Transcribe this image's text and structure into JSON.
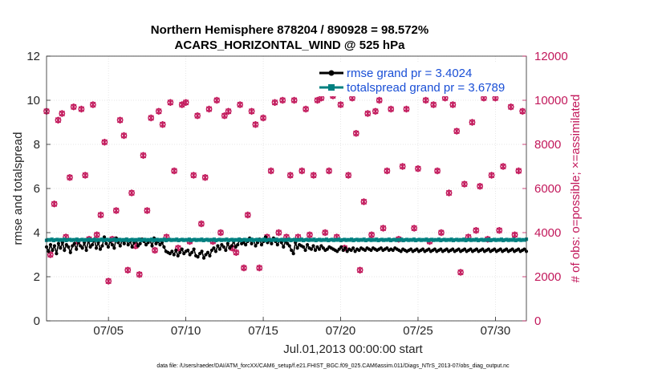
{
  "chart_data": {
    "type": "line",
    "title": "Northern Hemisphere 878204 / 890928 = 98.572%",
    "subtitle": "ACARS_HORIZONTAL_WIND @ 525 hPa",
    "xlabel": "Jul.01,2013 00:00:00 start",
    "ylabel": "rmse and totalspread",
    "ylabel_right": "# of obs: o=possible; ×=assimilated",
    "footnote": "data file: /Users/raeder/DAI/ATM_forcXX/CAM6_setup/f.e21.FHIST_BGC.f09_025.CAM6assim.011/Diags_NTrS_2013-07/obs_diag_output.nc",
    "xlim": [
      1,
      32
    ],
    "ylim": [
      0,
      12
    ],
    "ylim_right": [
      0,
      12000
    ],
    "xticks": [
      5,
      10,
      15,
      20,
      25,
      30
    ],
    "xtick_labels": [
      "07/05",
      "07/10",
      "07/15",
      "07/20",
      "07/25",
      "07/30"
    ],
    "yticks": [
      0,
      2,
      4,
      6,
      8,
      10,
      12
    ],
    "ytick_labels": [
      "0",
      "2",
      "4",
      "6",
      "8",
      "10",
      "12"
    ],
    "yticks_right": [
      0,
      2000,
      4000,
      6000,
      8000,
      10000,
      12000
    ],
    "ytick_labels_right": [
      "0",
      "2000",
      "4000",
      "6000",
      "8000",
      "10000",
      "12000"
    ],
    "legend_position": "top-right",
    "series": [
      {
        "name": "rmse grand pr = 3.4024",
        "color": "#000000",
        "values": [
          3.35,
          3.15,
          3.45,
          3.2,
          3.4,
          3.05,
          3.5,
          3.3,
          3.55,
          3.2,
          3.45,
          3.35,
          3.1,
          3.4,
          3.5,
          3.25,
          3.6,
          3.4,
          3.3,
          3.55,
          3.2,
          3.65,
          3.35,
          3.45,
          3.7,
          3.3,
          3.55,
          3.25,
          3.4,
          3.8,
          3.5,
          3.35,
          3.6,
          3.45,
          3.3,
          3.75,
          3.55,
          3.4,
          3.65,
          3.5,
          3.7,
          3.45,
          3.6,
          3.35,
          3.55,
          3.65,
          3.4,
          3.5,
          3.7,
          3.6,
          3.45,
          3.55,
          3.65,
          3.4,
          3.75,
          3.5,
          3.6,
          3.45,
          3.55,
          3.35,
          3.15,
          3.1,
          3.05,
          3.15,
          3.0,
          3.2,
          2.95,
          3.1,
          3.25,
          3.05,
          3.15,
          3.2,
          3.0,
          3.1,
          3.25,
          2.95,
          2.9,
          3.05,
          3.15,
          2.85,
          3.0,
          3.1,
          2.95,
          3.2,
          3.3,
          3.15,
          3.4,
          3.25,
          3.45,
          3.35,
          3.2,
          3.5,
          3.3,
          3.4,
          3.6,
          3.35,
          3.45,
          3.7,
          3.5,
          3.55,
          3.45,
          3.6,
          3.75,
          3.5,
          3.65,
          3.4,
          3.55,
          3.7,
          3.45,
          3.6,
          3.8,
          3.55,
          3.65,
          3.5,
          3.75,
          3.6,
          3.45,
          3.65,
          3.55,
          3.35,
          3.6,
          3.5,
          3.4,
          3.2,
          3.05,
          3.55,
          3.3,
          3.45,
          3.4,
          3.35,
          3.2,
          3.45,
          3.3,
          3.25,
          3.4,
          3.2,
          3.35,
          3.25,
          3.4,
          3.3,
          3.2,
          3.25,
          3.35,
          3.3,
          3.25,
          3.2,
          3.15,
          3.25,
          3.35,
          3.2,
          3.3,
          3.15,
          3.25,
          3.2,
          3.3,
          3.15,
          3.25,
          3.2,
          3.3,
          3.25,
          3.2,
          3.3,
          3.25,
          3.2,
          3.3,
          3.25,
          3.2,
          3.25,
          3.3,
          3.2,
          3.25,
          3.3,
          3.2,
          3.25,
          3.2,
          3.3,
          3.25,
          3.2,
          3.15,
          3.25,
          3.2,
          3.15,
          3.2,
          3.25,
          3.15,
          3.2,
          3.25,
          3.15,
          3.2,
          3.25,
          3.15,
          3.2,
          3.25,
          3.15,
          3.2,
          3.25,
          3.15,
          3.2,
          3.25,
          3.15,
          3.2,
          3.25,
          3.15,
          3.2,
          3.25,
          3.15,
          3.2,
          3.25,
          3.15,
          3.2,
          3.25,
          3.15,
          3.2,
          3.25,
          3.15,
          3.2,
          3.25,
          3.15,
          3.2,
          3.25,
          3.15,
          3.2,
          3.25,
          3.15,
          3.2,
          3.25,
          3.15,
          3.2,
          3.25,
          3.15,
          3.2,
          3.25,
          3.15,
          3.2,
          3.25,
          3.15,
          3.2,
          3.25,
          3.15,
          3.2,
          3.25,
          3.15
        ]
      },
      {
        "name": "totalspread grand pr = 3.6789",
        "color": "#008080",
        "values": [
          3.65,
          3.68,
          3.66,
          3.7,
          3.64,
          3.67,
          3.69,
          3.65,
          3.68,
          3.66,
          3.7,
          3.64,
          3.67,
          3.69,
          3.65,
          3.68,
          3.66,
          3.7,
          3.64,
          3.67,
          3.69,
          3.65,
          3.68,
          3.66,
          3.7,
          3.64,
          3.67,
          3.69,
          3.65,
          3.68,
          3.66,
          3.7,
          3.64,
          3.67,
          3.69,
          3.65,
          3.68,
          3.66,
          3.7,
          3.64,
          3.67,
          3.69,
          3.65,
          3.68,
          3.66,
          3.7,
          3.64,
          3.67,
          3.69,
          3.65,
          3.68,
          3.66,
          3.7,
          3.64,
          3.67,
          3.69,
          3.65,
          3.68,
          3.66,
          3.7,
          3.64,
          3.67,
          3.69,
          3.65,
          3.68,
          3.66,
          3.7,
          3.64,
          3.67,
          3.69,
          3.65,
          3.68,
          3.66,
          3.7,
          3.64,
          3.67,
          3.69,
          3.65,
          3.68,
          3.66,
          3.7,
          3.64,
          3.67,
          3.69,
          3.65,
          3.68,
          3.66,
          3.7,
          3.64,
          3.67,
          3.69,
          3.65,
          3.68,
          3.66,
          3.7,
          3.64,
          3.67,
          3.69,
          3.65,
          3.68,
          3.66,
          3.7,
          3.64,
          3.67,
          3.69,
          3.65,
          3.68,
          3.66,
          3.7,
          3.64,
          3.67,
          3.69,
          3.65,
          3.68,
          3.66,
          3.7,
          3.64,
          3.67,
          3.69,
          3.65,
          3.68,
          3.66,
          3.7,
          3.64,
          3.67,
          3.69,
          3.65,
          3.68,
          3.66,
          3.7,
          3.64,
          3.67,
          3.69,
          3.65,
          3.68,
          3.66,
          3.7,
          3.64,
          3.67,
          3.69,
          3.65,
          3.68,
          3.66,
          3.7,
          3.64,
          3.67,
          3.69,
          3.65,
          3.68,
          3.66,
          3.7,
          3.64,
          3.67,
          3.69,
          3.65,
          3.68,
          3.66,
          3.7,
          3.64,
          3.67,
          3.69,
          3.65,
          3.68,
          3.66,
          3.7,
          3.64,
          3.67,
          3.69,
          3.65,
          3.68,
          3.66,
          3.7,
          3.64,
          3.67,
          3.69,
          3.65,
          3.68,
          3.66,
          3.7,
          3.64,
          3.67,
          3.69,
          3.65,
          3.68,
          3.66,
          3.7,
          3.64,
          3.67,
          3.69,
          3.65,
          3.68,
          3.66,
          3.7,
          3.64,
          3.67,
          3.69,
          3.65,
          3.68,
          3.66,
          3.7,
          3.64,
          3.67,
          3.69,
          3.65,
          3.68,
          3.66,
          3.7,
          3.64,
          3.67,
          3.69,
          3.65,
          3.68,
          3.66,
          3.7,
          3.64,
          3.67,
          3.69,
          3.65,
          3.68,
          3.66,
          3.7,
          3.64,
          3.67,
          3.69,
          3.65,
          3.68,
          3.66,
          3.7,
          3.64,
          3.67,
          3.69,
          3.65,
          3.68,
          3.66,
          3.7,
          3.64,
          3.67,
          3.69,
          3.65,
          3.68,
          3.66,
          3.7,
          3.64,
          3.67,
          3.69,
          3.65,
          3.68,
          3.66,
          3.7,
          3.64,
          3.67,
          3.69,
          3.65,
          3.68,
          3.66,
          3.7,
          3.64,
          3.67,
          3.69,
          3.65,
          3.68,
          3.66,
          3.7,
          3.64,
          3.67,
          3.69,
          3.65,
          3.68,
          3.66,
          3.7
        ]
      }
    ],
    "obs_counts": {
      "color": "#c2185b",
      "x": [
        1.0,
        1.25,
        1.5,
        1.75,
        2.0,
        2.25,
        2.5,
        2.75,
        3.0,
        3.25,
        3.5,
        3.75,
        4.0,
        4.25,
        4.5,
        4.75,
        5.0,
        5.25,
        5.5,
        5.75,
        6.0,
        6.25,
        6.5,
        6.75,
        7.0,
        7.25,
        7.5,
        7.75,
        8.0,
        8.25,
        8.5,
        8.75,
        9.0,
        9.25,
        9.5,
        9.75,
        10.0,
        10.25,
        10.5,
        10.75,
        11.0,
        11.25,
        11.5,
        11.75,
        12.0,
        12.25,
        12.5,
        12.75,
        13.0,
        13.25,
        13.5,
        13.75,
        14.0,
        14.25,
        14.5,
        14.75,
        15.0,
        15.25,
        15.5,
        15.75,
        16.0,
        16.25,
        16.5,
        16.75,
        17.0,
        17.25,
        17.5,
        17.75,
        18.0,
        18.25,
        18.5,
        18.75,
        19.0,
        19.25,
        19.5,
        19.75,
        20.0,
        20.25,
        20.5,
        20.75,
        21.0,
        21.25,
        21.5,
        21.75,
        22.0,
        22.25,
        22.5,
        22.75,
        23.0,
        23.25,
        23.5,
        23.75,
        24.0,
        24.25,
        24.5,
        24.75,
        25.0,
        25.25,
        25.5,
        25.75,
        26.0,
        26.25,
        26.5,
        26.75,
        27.0,
        27.25,
        27.5,
        27.75,
        28.0,
        28.25,
        28.5,
        28.75,
        29.0,
        29.25,
        29.5,
        29.75,
        30.0,
        30.25,
        30.5,
        30.75,
        31.0,
        31.25,
        31.5,
        31.75
      ],
      "possible": [
        9500,
        3000,
        5300,
        9100,
        9400,
        3800,
        6500,
        9700,
        3600,
        9600,
        6600,
        3700,
        9800,
        3900,
        4800,
        8100,
        1800,
        3700,
        5000,
        9100,
        8400,
        2300,
        5800,
        3400,
        2100,
        7500,
        5000,
        9200,
        3200,
        9500,
        8900,
        3800,
        9900,
        6800,
        3300,
        9800,
        9900,
        3600,
        6600,
        9300,
        4400,
        6500,
        9600,
        3600,
        10000,
        4000,
        9300,
        9500,
        3300,
        3100,
        9800,
        2400,
        4800,
        9500,
        8900,
        2400,
        9200,
        3800,
        6800,
        9900,
        4000,
        10000,
        3800,
        6600,
        10000,
        3800,
        6800,
        9600,
        3900,
        6600,
        10000,
        10100,
        4000,
        6800,
        10200,
        3800,
        9800,
        3300,
        6600,
        10100,
        8500,
        2300,
        5400,
        9400,
        3900,
        9500,
        10000,
        4200,
        6800,
        9600,
        10400,
        3700,
        7000,
        9600,
        10500,
        4200,
        6900,
        10400,
        10000,
        3600,
        9800,
        6800,
        4000,
        10100,
        5800,
        9800,
        8600,
        2200,
        6200,
        3800,
        9000,
        4100,
        6100,
        10100,
        3700,
        6600,
        10100,
        4100,
        7000,
        10400,
        9700,
        3900,
        6800,
        9500
      ]
    }
  }
}
